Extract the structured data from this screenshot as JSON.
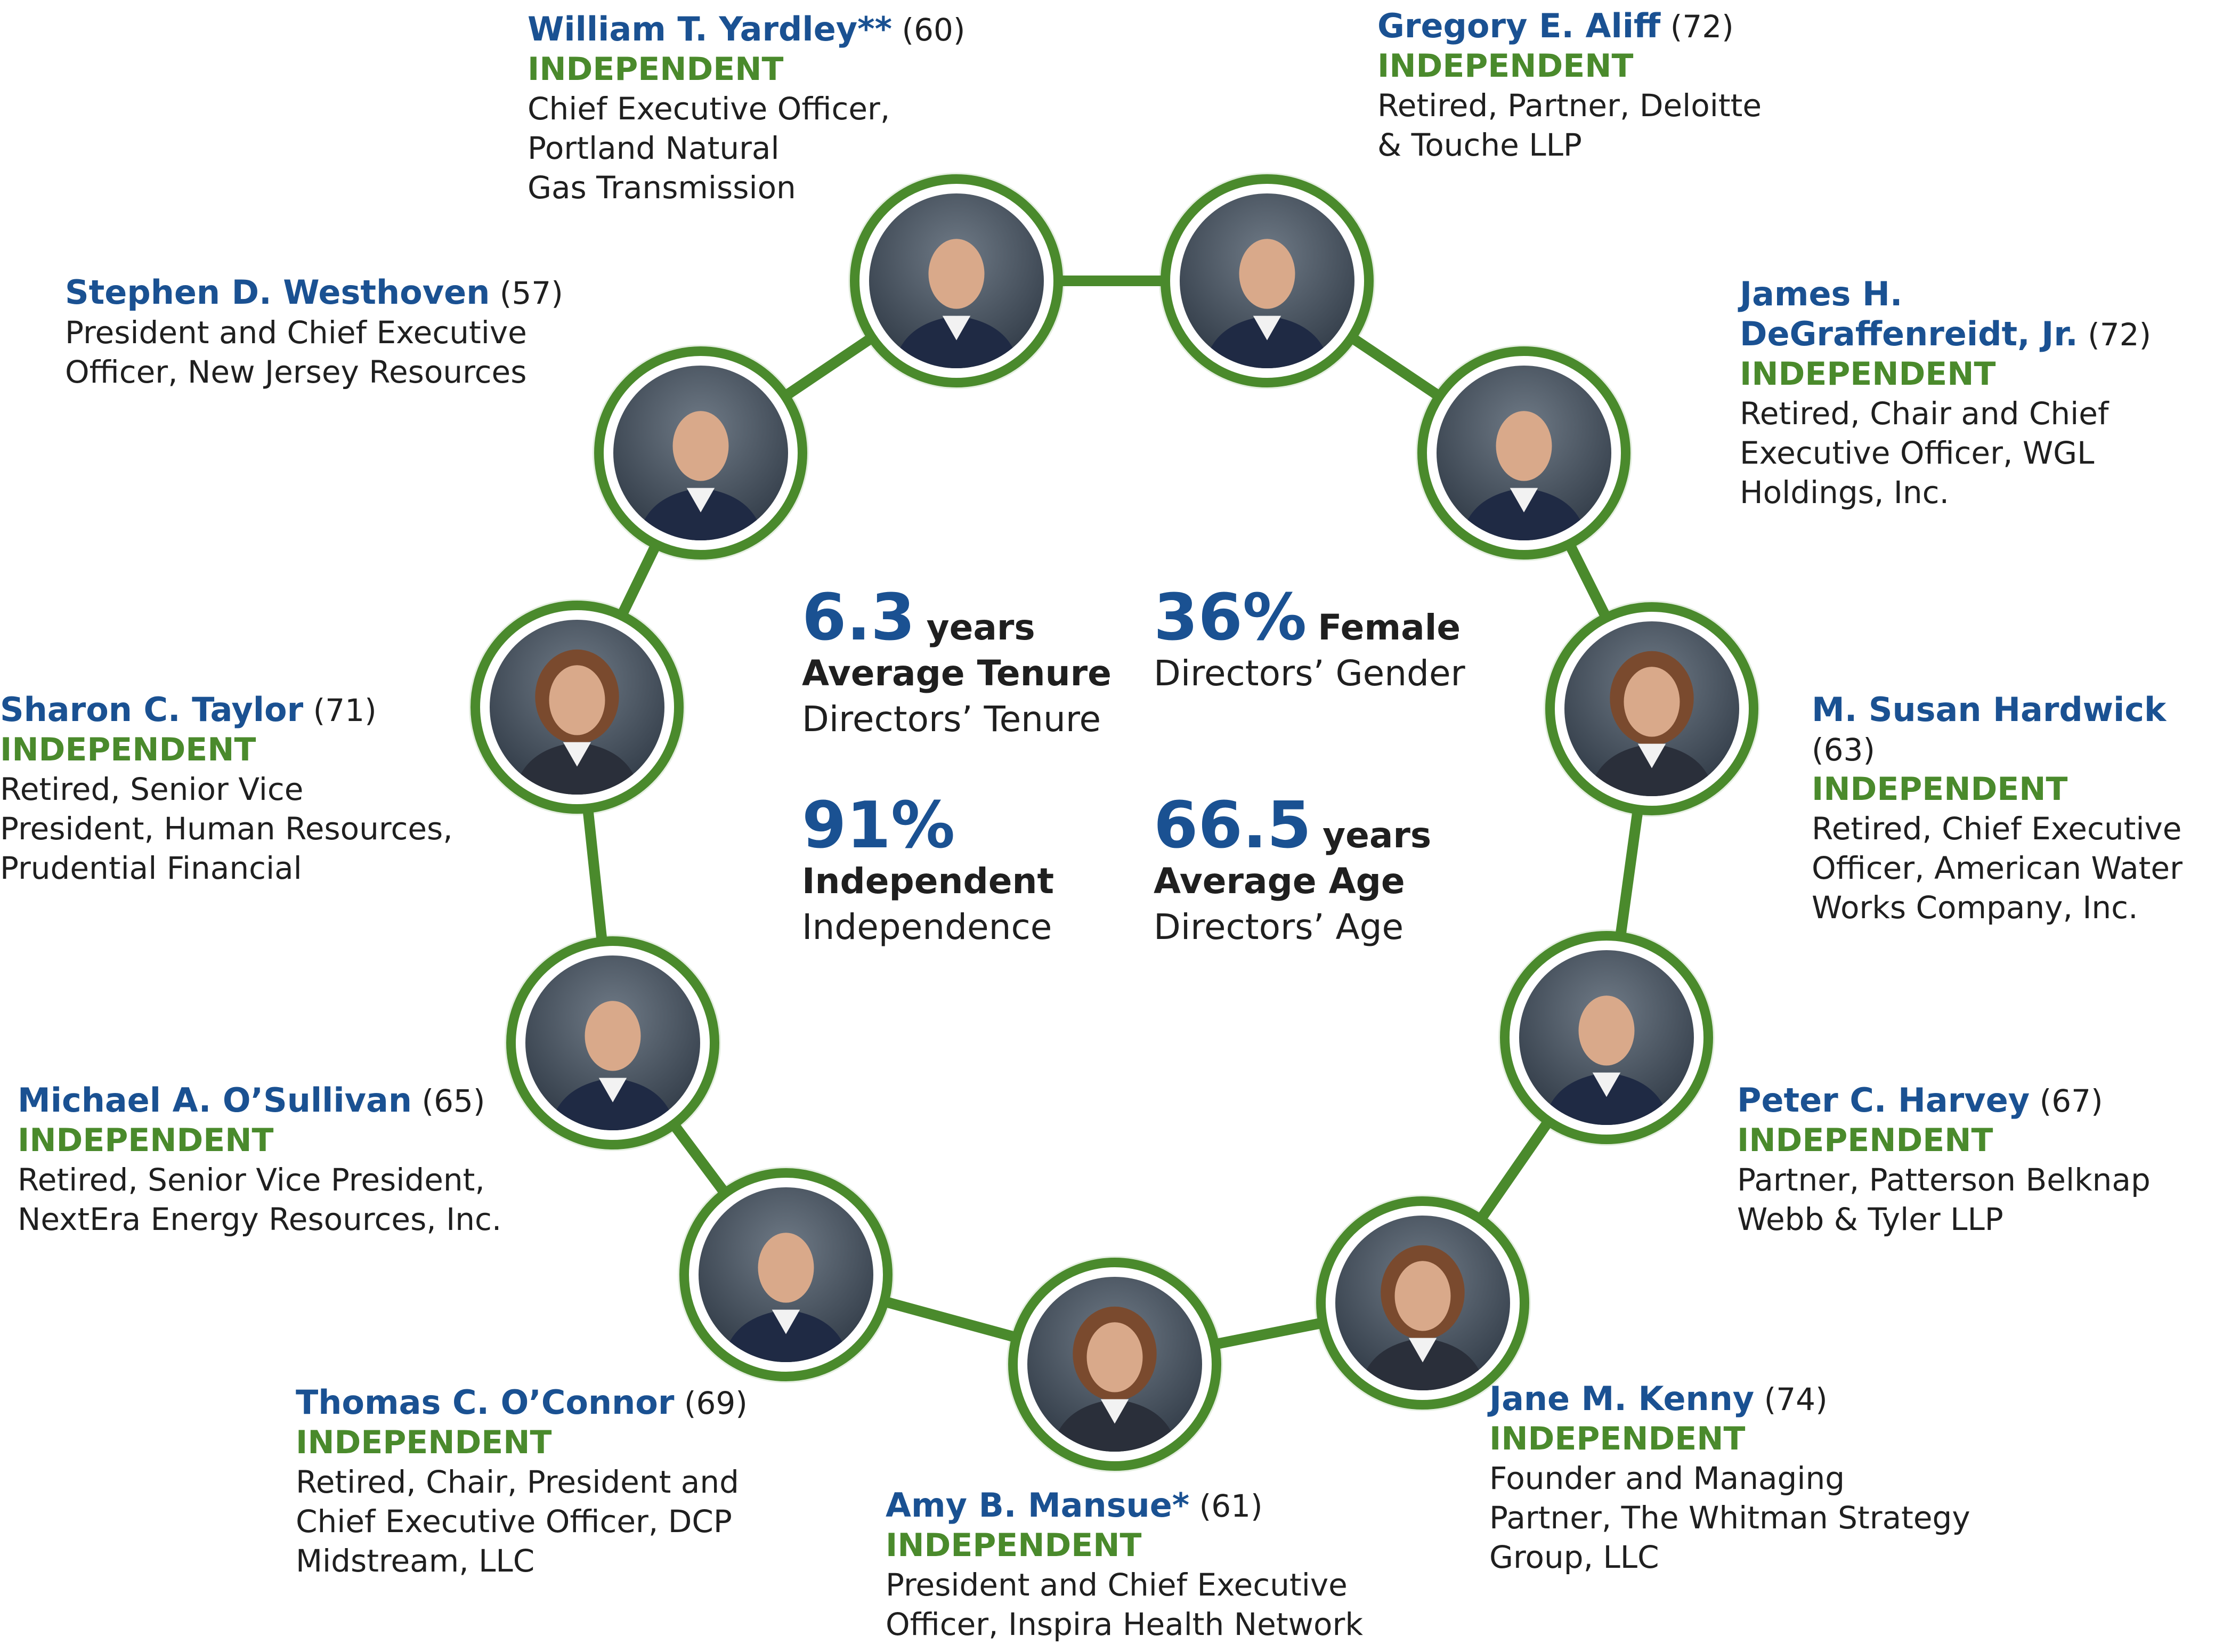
{
  "colors": {
    "accent_green": "#4a8a2c",
    "name_blue": "#1a5192",
    "text": "#1f1f1f"
  },
  "stats": {
    "tenure": {
      "value": "6.3",
      "unit": "years",
      "label": "Average Tenure",
      "sub": "Directors’ Tenure"
    },
    "gender": {
      "value": "36%",
      "unit": "Female",
      "sub": "Directors’ Gender"
    },
    "independence": {
      "value": "91%",
      "label": "Independent",
      "sub": "Independence"
    },
    "age": {
      "value": "66.5",
      "unit": "years",
      "label": "Average Age",
      "sub": "Directors’ Age"
    }
  },
  "directors": [
    {
      "name": "William T. Yardley**",
      "age": "(60)",
      "independent": "INDEPENDENT",
      "role": "Chief Executive Officer,\nPortland Natural\nGas Transmission",
      "photo_icon": "man-portrait-icon"
    },
    {
      "name": "Gregory E. Aliff",
      "age": "(72)",
      "independent": "INDEPENDENT",
      "role": "Retired, Partner, Deloitte\n& Touche LLP",
      "photo_icon": "man-portrait-icon"
    },
    {
      "name": "James H.\nDeGraffenreidt, Jr.",
      "age": "(72)",
      "independent": "INDEPENDENT",
      "role": "Retired, Chair and Chief\nExecutive Officer, WGL\nHoldings, Inc.",
      "photo_icon": "man-portrait-icon"
    },
    {
      "name": "M. Susan Hardwick",
      "age": "(63)",
      "independent": "INDEPENDENT",
      "role": "Retired, Chief Executive\nOfficer, American Water\nWorks Company, Inc.",
      "photo_icon": "woman-portrait-icon"
    },
    {
      "name": "Peter C. Harvey",
      "age": "(67)",
      "independent": "INDEPENDENT",
      "role": "Partner, Patterson Belknap\nWebb & Tyler LLP",
      "photo_icon": "man-portrait-icon"
    },
    {
      "name": "Jane M. Kenny",
      "age": "(74)",
      "independent": "INDEPENDENT",
      "role": "Founder and Managing\nPartner, The Whitman Strategy\nGroup, LLC",
      "photo_icon": "woman-portrait-icon"
    },
    {
      "name": "Amy B. Mansue*",
      "age": "(61)",
      "independent": "INDEPENDENT",
      "role": "President and Chief Executive\nOfficer, Inspira Health Network",
      "photo_icon": "woman-portrait-icon"
    },
    {
      "name": "Thomas C. O’Connor",
      "age": "(69)",
      "independent": "INDEPENDENT",
      "role": "Retired, Chair, President and\nChief Executive Officer, DCP\nMidstream, LLC",
      "photo_icon": "man-portrait-icon"
    },
    {
      "name": "Michael A. O’Sullivan",
      "age": "(65)",
      "independent": "INDEPENDENT",
      "role": "Retired, Senior Vice President,\nNextEra Energy Resources, Inc.",
      "photo_icon": "man-portrait-icon"
    },
    {
      "name": "Sharon C. Taylor",
      "age": "(71)",
      "independent": "INDEPENDENT",
      "role": "Retired, Senior Vice\nPresident, Human Resources,\nPrudential Financial",
      "photo_icon": "woman-portrait-icon"
    },
    {
      "name": "Stephen D. Westhoven",
      "age": "(57)",
      "independent": "",
      "role": "President and Chief Executive\nOfficer, New Jersey Resources",
      "photo_icon": "man-portrait-icon"
    }
  ]
}
